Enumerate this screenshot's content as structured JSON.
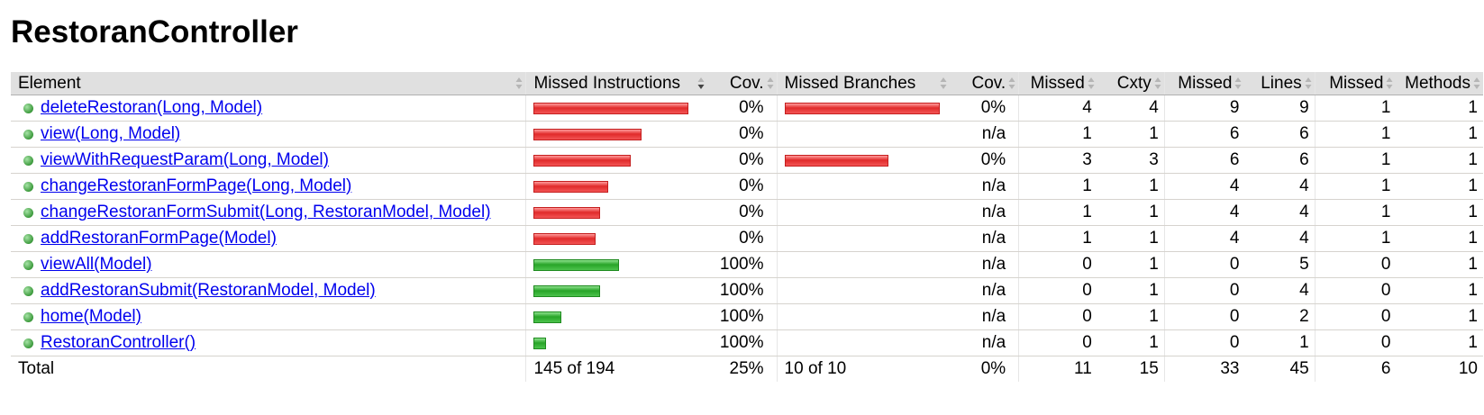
{
  "page_title": "RestoranController",
  "header": {
    "element": "Element",
    "missed_instructions": "Missed Instructions",
    "cov1": "Cov.",
    "missed_branches": "Missed Branches",
    "cov2": "Cov.",
    "missed_cxty": "Missed",
    "cxty": "Cxty",
    "missed_lines": "Missed",
    "lines": "Lines",
    "missed_methods": "Missed",
    "methods": "Methods"
  },
  "rows": [
    {
      "name": "deleteRestoran(Long, Model)",
      "instr_bar": {
        "color": "red",
        "fraction": 1.0
      },
      "instr_cov": "0%",
      "branch_bar": {
        "color": "red",
        "fraction": 1.0
      },
      "branch_cov": "0%",
      "missed_cxty": "4",
      "cxty": "4",
      "missed_lines": "9",
      "lines": "9",
      "missed_methods": "1",
      "methods": "1"
    },
    {
      "name": "view(Long, Model)",
      "instr_bar": {
        "color": "red",
        "fraction": 0.7
      },
      "instr_cov": "0%",
      "branch_bar": null,
      "branch_cov": "n/a",
      "missed_cxty": "1",
      "cxty": "1",
      "missed_lines": "6",
      "lines": "6",
      "missed_methods": "1",
      "methods": "1"
    },
    {
      "name": "viewWithRequestParam(Long, Model)",
      "instr_bar": {
        "color": "red",
        "fraction": 0.63
      },
      "instr_cov": "0%",
      "branch_bar": {
        "color": "red",
        "fraction": 0.67
      },
      "branch_cov": "0%",
      "missed_cxty": "3",
      "cxty": "3",
      "missed_lines": "6",
      "lines": "6",
      "missed_methods": "1",
      "methods": "1"
    },
    {
      "name": "changeRestoranFormPage(Long, Model)",
      "instr_bar": {
        "color": "red",
        "fraction": 0.48
      },
      "instr_cov": "0%",
      "branch_bar": null,
      "branch_cov": "n/a",
      "missed_cxty": "1",
      "cxty": "1",
      "missed_lines": "4",
      "lines": "4",
      "missed_methods": "1",
      "methods": "1"
    },
    {
      "name": "changeRestoranFormSubmit(Long, RestoranModel, Model)",
      "instr_bar": {
        "color": "red",
        "fraction": 0.43
      },
      "instr_cov": "0%",
      "branch_bar": null,
      "branch_cov": "n/a",
      "missed_cxty": "1",
      "cxty": "1",
      "missed_lines": "4",
      "lines": "4",
      "missed_methods": "1",
      "methods": "1"
    },
    {
      "name": "addRestoranFormPage(Model)",
      "instr_bar": {
        "color": "red",
        "fraction": 0.4
      },
      "instr_cov": "0%",
      "branch_bar": null,
      "branch_cov": "n/a",
      "missed_cxty": "1",
      "cxty": "1",
      "missed_lines": "4",
      "lines": "4",
      "missed_methods": "1",
      "methods": "1"
    },
    {
      "name": "viewAll(Model)",
      "instr_bar": {
        "color": "green",
        "fraction": 0.55
      },
      "instr_cov": "100%",
      "branch_bar": null,
      "branch_cov": "n/a",
      "missed_cxty": "0",
      "cxty": "1",
      "missed_lines": "0",
      "lines": "5",
      "missed_methods": "0",
      "methods": "1"
    },
    {
      "name": "addRestoranSubmit(RestoranModel, Model)",
      "instr_bar": {
        "color": "green",
        "fraction": 0.43
      },
      "instr_cov": "100%",
      "branch_bar": null,
      "branch_cov": "n/a",
      "missed_cxty": "0",
      "cxty": "1",
      "missed_lines": "0",
      "lines": "4",
      "missed_methods": "0",
      "methods": "1"
    },
    {
      "name": "home(Model)",
      "instr_bar": {
        "color": "green",
        "fraction": 0.18
      },
      "instr_cov": "100%",
      "branch_bar": null,
      "branch_cov": "n/a",
      "missed_cxty": "0",
      "cxty": "1",
      "missed_lines": "0",
      "lines": "2",
      "missed_methods": "0",
      "methods": "1"
    },
    {
      "name": "RestoranController()",
      "instr_bar": {
        "color": "green",
        "fraction": 0.08
      },
      "instr_cov": "100%",
      "branch_bar": null,
      "branch_cov": "n/a",
      "missed_cxty": "0",
      "cxty": "1",
      "missed_lines": "0",
      "lines": "1",
      "missed_methods": "0",
      "methods": "1"
    }
  ],
  "total": {
    "label": "Total",
    "missed_instructions": "145 of 194",
    "instr_cov": "25%",
    "missed_branches": "10 of 10",
    "branch_cov": "0%",
    "missed_cxty": "11",
    "cxty": "15",
    "missed_lines": "33",
    "lines": "45",
    "missed_methods": "6",
    "methods": "10"
  },
  "colors": {
    "header_bg": "#e0e0e0",
    "bar_red": "#e12a2a",
    "bar_green": "#28a428",
    "link": "#0000ee",
    "method_icon": "#3c9a3c"
  }
}
